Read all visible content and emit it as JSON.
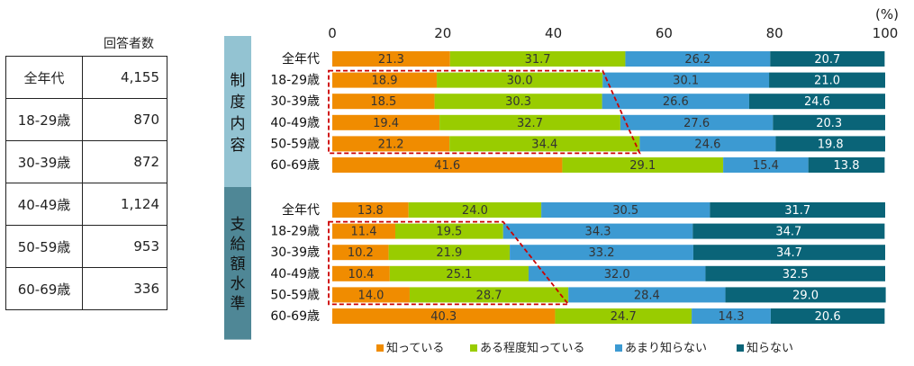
{
  "respondents": {
    "header": "回答者数",
    "rows": [
      {
        "age": "全年代",
        "count": "4,155"
      },
      {
        "age": "18-29歳",
        "count": "870"
      },
      {
        "age": "30-39歳",
        "count": "872"
      },
      {
        "age": "40-49歳",
        "count": "1,124"
      },
      {
        "age": "50-59歳",
        "count": "953"
      },
      {
        "age": "60-69歳",
        "count": "336"
      }
    ]
  },
  "chart_data": {
    "type": "bar",
    "orientation": "horizontal",
    "stacked": true,
    "unit_label": "(%)",
    "xlim": [
      0,
      100
    ],
    "xticks": [
      0,
      20,
      40,
      60,
      80,
      100
    ],
    "categories": [
      "全年代",
      "18-29歳",
      "30-39歳",
      "40-49歳",
      "50-59歳",
      "60-69歳"
    ],
    "legend": {
      "position": "bottom"
    },
    "series_info": [
      {
        "name": "知っている",
        "color": "#F08C00"
      },
      {
        "name": "ある程度知っている",
        "color": "#99CC00"
      },
      {
        "name": "あまり知らない",
        "color": "#3C9AD2"
      },
      {
        "name": "知らない",
        "color": "#0A6478"
      }
    ],
    "groups": [
      {
        "title": "制度内容",
        "title_bg": "#93C3D2",
        "values": [
          [
            21.3,
            31.7,
            26.2,
            20.7
          ],
          [
            18.9,
            30.0,
            30.1,
            21.0
          ],
          [
            18.5,
            30.3,
            26.6,
            24.6
          ],
          [
            19.4,
            32.7,
            27.6,
            20.3
          ],
          [
            21.2,
            34.4,
            24.6,
            19.8
          ],
          [
            41.6,
            29.1,
            15.4,
            13.8
          ]
        ]
      },
      {
        "title": "支給額水準",
        "title_bg": "#4F8796",
        "values": [
          [
            13.8,
            24.0,
            30.5,
            31.7
          ],
          [
            11.4,
            19.5,
            34.3,
            34.7
          ],
          [
            10.2,
            21.9,
            33.2,
            34.7
          ],
          [
            10.4,
            25.1,
            32.0,
            32.5
          ],
          [
            14.0,
            28.7,
            28.4,
            29.0
          ],
          [
            40.3,
            24.7,
            14.3,
            20.6
          ]
        ]
      }
    ]
  }
}
